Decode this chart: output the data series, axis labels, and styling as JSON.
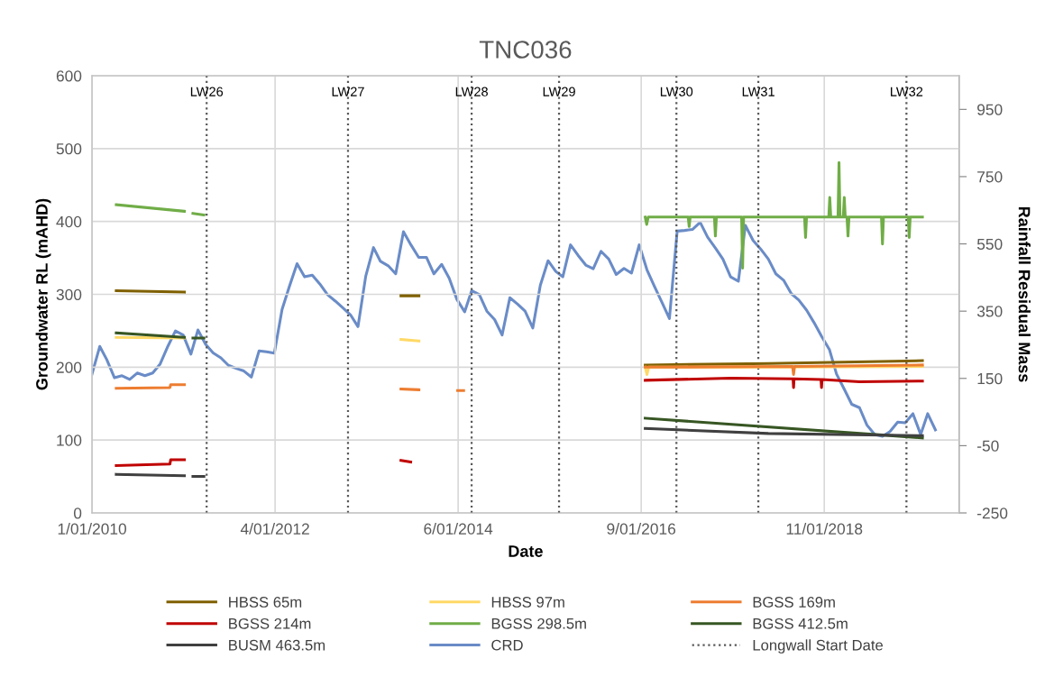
{
  "chart_data": {
    "type": "line",
    "title": "TNC036",
    "xlabel": "Date",
    "ylabel": "Groundwater RL (mAHD)",
    "y2label": "Rainfall Residual Mass",
    "xlim": [
      "2010-01-01",
      "2019-07-05"
    ],
    "xticks": [
      {
        "value": "2010-01-01",
        "label": "1/01/2010"
      },
      {
        "value": "2012-01-04",
        "label": "4/01/2012"
      },
      {
        "value": "2014-01-06",
        "label": "6/01/2014"
      },
      {
        "value": "2016-01-09",
        "label": "9/01/2016"
      },
      {
        "value": "2018-01-11",
        "label": "11/01/2018"
      }
    ],
    "ylim": [
      0,
      600
    ],
    "yticks": [
      0,
      100,
      200,
      300,
      400,
      500,
      600
    ],
    "y2lim": [
      -250,
      1050
    ],
    "y2ticks": [
      -250,
      -50,
      150,
      350,
      550,
      750,
      950
    ],
    "grid": true,
    "legend": "bottom",
    "series": [
      {
        "name": "HBSS 65m",
        "color": "#7f6000",
        "x": [
          "2010-04-08",
          "2011-01-06",
          "2012-01-01",
          "2013-05-22",
          "2013-08-02",
          "2014-10-01",
          "2016-01-25",
          "2017-06-01",
          "2019-02-08"
        ],
        "values": [
          305,
          303,
          null,
          298,
          298,
          null,
          203,
          205,
          209
        ]
      },
      {
        "name": "HBSS 97m",
        "color": "#ffd966",
        "x": [
          "2010-04-08",
          "2011-01-06",
          "2012-01-01",
          "2013-05-22",
          "2013-08-02",
          "2014-10-01",
          "2016-01-25",
          "2016-02-01",
          "2016-02-08",
          "2017-06-01",
          "2019-02-08"
        ],
        "values": [
          241,
          240,
          null,
          238,
          236,
          null,
          200,
          190,
          200,
          200,
          201
        ]
      },
      {
        "name": "BGSS 169m",
        "color": "#ed7d31",
        "x": [
          "2010-04-08",
          "2010-11-09",
          "2010-11-12",
          "2011-01-06",
          "2012-01-01",
          "2013-05-22",
          "2013-08-02",
          "2013-10-15",
          "2014-01-04",
          "2014-01-28",
          "2014-10-01",
          "2016-01-25",
          "2017-09-06",
          "2017-09-10",
          "2017-09-14",
          "2019-02-08"
        ],
        "values": [
          171,
          172,
          176,
          176,
          null,
          170,
          169,
          null,
          168,
          168,
          null,
          200,
          201,
          190,
          201,
          203
        ]
      },
      {
        "name": "BGSS 214m",
        "color": "#c00000",
        "x": [
          "2010-04-08",
          "2010-11-09",
          "2010-11-12",
          "2011-01-06",
          "2012-01-01",
          "2013-05-22",
          "2013-06-30",
          "2014-10-01",
          "2016-01-25",
          "2017-01-01",
          "2017-09-08",
          "2017-09-10",
          "2017-09-12",
          "2017-12-29",
          "2017-12-31",
          "2018-01-02",
          "2018-06-01",
          "2019-02-08"
        ],
        "values": [
          65,
          67,
          73,
          73,
          null,
          72,
          70,
          null,
          182,
          185,
          184,
          172,
          184,
          183,
          172,
          183,
          180,
          181
        ]
      },
      {
        "name": "BGSS 298.5m",
        "color": "#70ad47",
        "x": [
          "2010-04-08",
          "2011-01-06",
          "2011-01-25",
          "2011-02-09",
          "2011-03-25",
          "2012-01-01",
          "2016-01-25",
          "2016-01-31",
          "2016-02-06",
          "2016-07-15",
          "2016-07-19",
          "2016-07-23",
          "2016-10-28",
          "2016-11-01",
          "2016-11-05",
          "2017-02-14",
          "2017-02-18",
          "2017-02-22",
          "2017-10-24",
          "2017-10-28",
          "2017-11-01",
          "2018-01-29",
          "2018-02-02",
          "2018-02-06",
          "2018-03-07",
          "2018-03-11",
          "2018-03-15",
          "2018-03-28",
          "2018-04-01",
          "2018-04-05",
          "2018-04-12",
          "2018-04-16",
          "2018-04-20",
          "2018-08-28",
          "2018-09-01",
          "2018-09-05",
          "2018-12-13",
          "2018-12-17",
          "2018-12-21",
          "2019-02-08"
        ],
        "values": [
          423,
          414,
          null,
          411,
          409,
          null,
          406,
          396,
          406,
          406,
          393,
          406,
          406,
          380,
          406,
          406,
          336,
          406,
          406,
          378,
          406,
          406,
          433,
          406,
          406,
          481,
          406,
          406,
          433,
          406,
          406,
          380,
          406,
          406,
          369,
          406,
          406,
          378,
          406,
          406
        ]
      },
      {
        "name": "BGSS 412.5m",
        "color": "#375623",
        "x": [
          "2010-04-08",
          "2011-01-06",
          "2011-01-25",
          "2011-02-09",
          "2011-03-25",
          "2012-01-01",
          "2016-01-25",
          "2019-02-08"
        ],
        "values": [
          247,
          241,
          null,
          240,
          240,
          null,
          130,
          103
        ]
      },
      {
        "name": "BUSM 463.5m",
        "color": "#404040",
        "x": [
          "2010-04-08",
          "2011-01-06",
          "2011-01-25",
          "2011-02-09",
          "2011-03-25",
          "2012-01-01",
          "2016-01-25",
          "2017-06-01",
          "2019-02-08"
        ],
        "values": [
          53,
          51,
          null,
          50,
          50,
          null,
          116,
          109,
          106
        ]
      },
      {
        "name": "CRD",
        "color": "#6a8cc7",
        "axis": "y2",
        "x": [
          "2010-01",
          "2010-02",
          "2010-03",
          "2010-04",
          "2010-05",
          "2010-06",
          "2010-07",
          "2010-08",
          "2010-09",
          "2010-10",
          "2010-11",
          "2010-12",
          "2011-01",
          "2011-02",
          "2011-03",
          "2011-04",
          "2011-05",
          "2011-06",
          "2011-07",
          "2011-08",
          "2011-09",
          "2011-10",
          "2011-11",
          "2011-12",
          "2012-01",
          "2012-02",
          "2012-03",
          "2012-04",
          "2012-05",
          "2012-06",
          "2012-07",
          "2012-08",
          "2012-09",
          "2012-10",
          "2012-11",
          "2012-12",
          "2013-01",
          "2013-02",
          "2013-03",
          "2013-04",
          "2013-05",
          "2013-06",
          "2013-07",
          "2013-08",
          "2013-09",
          "2013-10",
          "2013-11",
          "2013-12",
          "2014-01",
          "2014-02",
          "2014-03",
          "2014-04",
          "2014-05",
          "2014-06",
          "2014-07",
          "2014-08",
          "2014-09",
          "2014-10",
          "2014-11",
          "2014-12",
          "2015-01",
          "2015-02",
          "2015-03",
          "2015-04",
          "2015-05",
          "2015-06",
          "2015-07",
          "2015-08",
          "2015-09",
          "2015-10",
          "2015-11",
          "2015-12",
          "2016-01",
          "2016-02",
          "2016-03",
          "2016-04",
          "2016-05",
          "2016-06",
          "2016-07",
          "2016-08",
          "2016-09",
          "2016-10",
          "2016-11",
          "2016-12",
          "2017-01",
          "2017-02",
          "2017-03",
          "2017-04",
          "2017-05",
          "2017-06",
          "2017-07",
          "2017-08",
          "2017-09",
          "2017-10",
          "2017-11",
          "2017-12",
          "2018-01",
          "2018-02",
          "2018-03",
          "2018-04",
          "2018-05",
          "2018-06",
          "2018-07",
          "2018-08",
          "2018-09",
          "2018-10",
          "2018-11",
          "2018-12",
          "2019-01",
          "2019-02",
          "2019-03",
          "2019-04"
        ],
        "values": [
          163,
          245,
          206,
          152,
          158,
          147,
          166,
          158,
          166,
          193,
          246,
          291,
          279,
          222,
          294,
          251,
          226,
          211,
          189,
          180,
          172,
          154,
          232,
          229,
          225,
          355,
          423,
          491,
          452,
          457,
          431,
          399,
          380,
          360,
          339,
          304,
          454,
          539,
          498,
          485,
          461,
          586,
          547,
          510,
          510,
          461,
          489,
          448,
          385,
          348,
          411,
          399,
          350,
          325,
          279,
          390,
          371,
          350,
          300,
          427,
          500,
          468,
          452,
          547,
          516,
          487,
          476,
          528,
          505,
          459,
          477,
          463,
          547,
          473,
          425,
          376,
          328,
          588,
          590,
          593,
          614,
          570,
          538,
          505,
          452,
          439,
          605,
          560,
          535,
          505,
          461,
          442,
          402,
          383,
          353,
          316,
          274,
          235,
          163,
          118,
          73,
          63,
          11,
          -17,
          -22,
          -8,
          20,
          18,
          45,
          -17,
          45,
          -3
        ]
      }
    ],
    "ref_lines": [
      {
        "axis": "x",
        "value": "2011-04-05",
        "label": "LW26",
        "color": "#595959",
        "line_style": "dotted"
      },
      {
        "axis": "x",
        "value": "2012-10-22",
        "label": "LW27",
        "color": "#595959",
        "line_style": "dotted"
      },
      {
        "axis": "x",
        "value": "2014-03-01",
        "label": "LW28",
        "color": "#595959",
        "line_style": "dotted"
      },
      {
        "axis": "x",
        "value": "2015-02-14",
        "label": "LW29",
        "color": "#595959",
        "line_style": "dotted"
      },
      {
        "axis": "x",
        "value": "2016-05-29",
        "label": "LW30",
        "color": "#595959",
        "line_style": "dotted"
      },
      {
        "axis": "x",
        "value": "2017-04-22",
        "label": "LW31",
        "color": "#595959",
        "line_style": "dotted"
      },
      {
        "axis": "x",
        "value": "2018-12-06",
        "label": "LW32",
        "color": "#595959",
        "line_style": "dotted"
      }
    ],
    "annotations": [
      "Longwall Start Date"
    ]
  }
}
